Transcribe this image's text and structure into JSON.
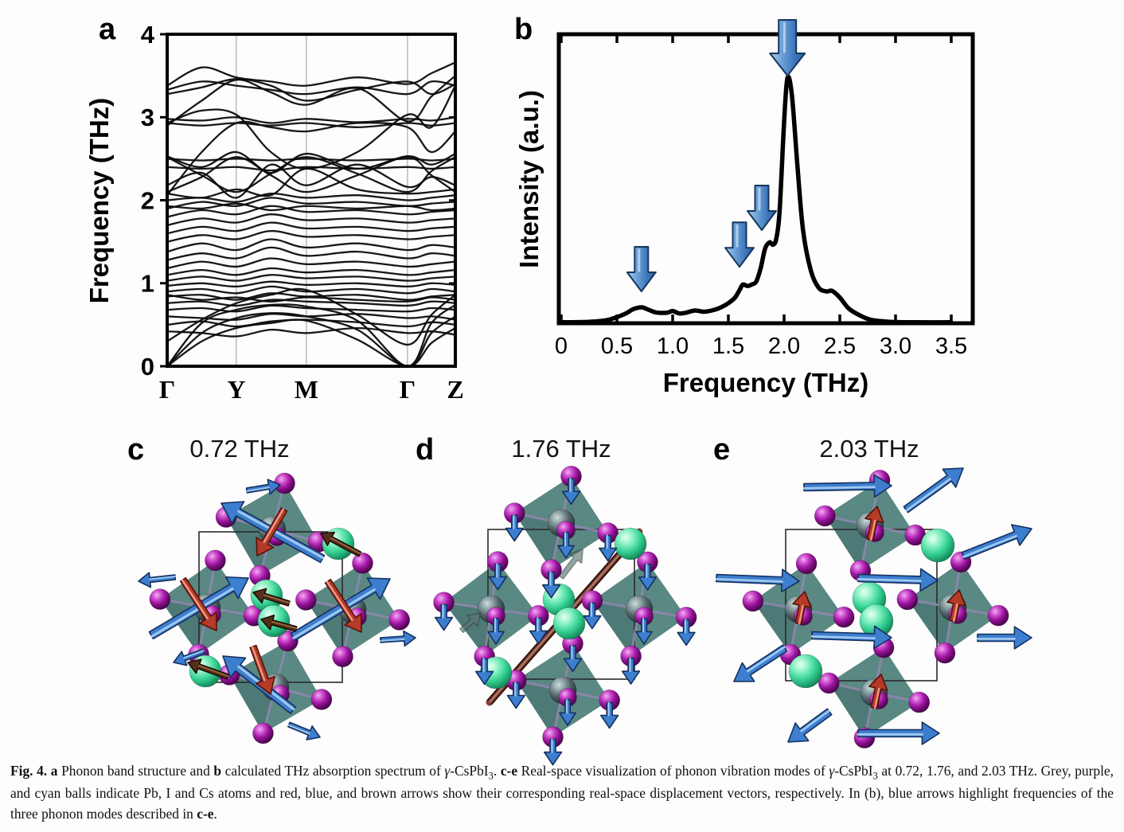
{
  "panels": {
    "a": "a",
    "b": "b"
  },
  "colors": {
    "band": "#0b0b0b",
    "frame": "#000000",
    "grid": "#9a9a9a",
    "octahedron": "#4e7f7a",
    "octahedron_facet": "#44706b",
    "cell_line": "#2a2a2a",
    "bond": "#8d87ad",
    "i_ball_purple": "#9a159c",
    "pb_ball_grey": "#4e6165",
    "cs_ball_cyan": "#35d093",
    "arrow_blue": "#3d7ecf",
    "arrow_red": "#b53a28",
    "arrow_brown": "#54301a",
    "spectrum_arrow_blue": "#4d85c8"
  },
  "chart_data": [
    {
      "id": "panel_a",
      "type": "line",
      "title": "Phonon band structure",
      "ylabel": "Frequency (THz)",
      "ylim": [
        0,
        4
      ],
      "yticks": [
        0,
        1,
        2,
        3,
        4
      ],
      "ytick_labels": [
        "0",
        "1",
        "2",
        "3",
        "4"
      ],
      "kpoint_labels": [
        "Γ",
        "Y",
        "M",
        "Γ",
        "Z"
      ],
      "kpoint_positions": [
        0,
        0.24,
        0.483,
        0.834,
        1.0
      ],
      "band_x": [
        0,
        0.12,
        0.24,
        0.36,
        0.483,
        0.66,
        0.834,
        0.917,
        1.0
      ],
      "bands": [
        [
          0.0,
          0.3,
          0.46,
          0.52,
          0.55,
          0.32,
          0.0,
          0.28,
          0.46
        ],
        [
          0.0,
          0.4,
          0.58,
          0.64,
          0.6,
          0.44,
          0.0,
          0.4,
          0.6
        ],
        [
          0.0,
          0.52,
          0.68,
          0.74,
          0.72,
          0.55,
          0.0,
          0.52,
          0.74
        ],
        [
          0.42,
          0.4,
          0.36,
          0.44,
          0.4,
          0.46,
          0.4,
          0.42,
          0.38
        ],
        [
          0.5,
          0.54,
          0.48,
          0.54,
          0.56,
          0.53,
          0.48,
          0.53,
          0.5
        ],
        [
          0.6,
          0.58,
          0.56,
          0.63,
          0.6,
          0.63,
          0.58,
          0.6,
          0.56
        ],
        [
          0.68,
          0.7,
          0.66,
          0.73,
          0.7,
          0.68,
          0.66,
          0.7,
          0.68
        ],
        [
          0.76,
          0.78,
          0.73,
          0.8,
          0.78,
          0.76,
          0.73,
          0.78,
          0.76
        ],
        [
          0.84,
          0.86,
          0.8,
          0.88,
          0.84,
          0.86,
          0.8,
          0.84,
          0.86
        ],
        [
          0.9,
          0.93,
          0.88,
          0.96,
          0.9,
          0.93,
          0.88,
          0.93,
          0.9
        ],
        [
          0.97,
          1.0,
          0.96,
          1.02,
          0.98,
          1.0,
          0.96,
          1.0,
          0.98
        ],
        [
          1.03,
          1.08,
          1.03,
          1.1,
          1.06,
          1.08,
          1.03,
          1.06,
          1.08
        ],
        [
          1.1,
          1.16,
          1.1,
          1.18,
          1.13,
          1.16,
          1.1,
          1.13,
          1.16
        ],
        [
          1.18,
          1.26,
          1.2,
          1.3,
          1.23,
          1.26,
          1.2,
          1.23,
          1.26
        ],
        [
          1.28,
          1.36,
          1.3,
          1.43,
          1.33,
          1.38,
          1.3,
          1.36,
          1.33
        ],
        [
          1.38,
          1.48,
          1.4,
          1.53,
          1.43,
          1.48,
          1.4,
          1.46,
          1.43
        ],
        [
          1.5,
          1.58,
          1.53,
          1.63,
          1.56,
          1.58,
          1.53,
          1.56,
          1.58
        ],
        [
          1.6,
          1.68,
          1.63,
          1.73,
          1.66,
          1.68,
          1.63,
          1.66,
          1.68
        ],
        [
          1.7,
          1.78,
          1.73,
          1.83,
          1.76,
          1.78,
          1.73,
          1.76,
          1.78
        ],
        [
          1.8,
          1.88,
          1.83,
          1.93,
          1.86,
          1.88,
          1.83,
          1.86,
          1.88
        ],
        [
          1.9,
          1.98,
          1.93,
          2.03,
          1.96,
          1.98,
          1.93,
          1.96,
          1.98
        ],
        [
          2.0,
          2.03,
          1.98,
          2.08,
          2.03,
          2.06,
          2.0,
          2.03,
          2.06
        ],
        [
          2.08,
          2.03,
          2.13,
          2.06,
          2.38,
          2.13,
          2.08,
          2.1,
          2.13
        ],
        [
          2.18,
          2.33,
          2.03,
          2.43,
          2.18,
          2.43,
          2.16,
          2.28,
          2.18
        ],
        [
          2.5,
          2.48,
          2.5,
          2.48,
          2.5,
          2.48,
          2.5,
          2.48,
          2.5
        ],
        [
          2.53,
          2.4,
          2.58,
          2.33,
          2.56,
          2.38,
          2.53,
          2.43,
          2.56
        ],
        [
          2.93,
          2.9,
          2.93,
          2.9,
          2.93,
          2.88,
          2.93,
          2.9,
          2.93
        ],
        [
          2.98,
          2.96,
          3.0,
          2.93,
          2.98,
          2.94,
          2.98,
          2.96,
          3.0
        ],
        [
          2.06,
          2.58,
          2.93,
          2.88,
          2.83,
          2.93,
          2.88,
          2.58,
          2.83
        ],
        [
          2.93,
          3.08,
          3.03,
          2.58,
          2.38,
          2.58,
          3.03,
          2.88,
          3.38
        ],
        [
          3.33,
          3.43,
          3.38,
          3.33,
          3.28,
          3.36,
          3.28,
          3.43,
          3.38
        ],
        [
          3.38,
          3.6,
          3.48,
          3.43,
          3.38,
          3.48,
          3.4,
          3.53,
          3.66
        ],
        [
          3.28,
          3.36,
          3.46,
          3.38,
          3.2,
          3.33,
          3.43,
          3.28,
          3.4
        ],
        [
          1.93,
          1.9,
          1.96,
          1.88,
          1.93,
          1.9,
          1.93,
          1.88,
          1.9
        ],
        [
          0.86,
          0.8,
          0.83,
          0.78,
          0.83,
          0.8,
          0.78,
          0.83,
          0.8
        ],
        [
          2.4,
          2.38,
          2.4,
          2.36,
          2.4,
          2.38,
          2.4,
          2.38,
          2.4
        ],
        [
          0.3,
          0.56,
          0.76,
          0.86,
          0.92,
          0.62,
          0.26,
          0.62,
          0.86
        ],
        [
          2.1,
          2.28,
          2.52,
          2.3,
          2.1,
          2.3,
          2.52,
          2.3,
          2.1
        ],
        [
          2.52,
          2.3,
          2.1,
          2.32,
          2.52,
          2.32,
          2.1,
          2.35,
          2.52
        ],
        [
          2.9,
          3.2,
          3.45,
          3.3,
          3.15,
          3.35,
          2.95,
          3.25,
          3.5
        ]
      ]
    },
    {
      "id": "panel_b",
      "type": "line",
      "title": "Calculated THz absorption spectrum",
      "xlabel": "Frequency (THz)",
      "ylabel": "Intensity (a.u.)",
      "xlim": [
        0,
        3.5
      ],
      "ylim": [
        0,
        1.05
      ],
      "xticks": [
        0,
        0.5,
        1.0,
        1.5,
        2.0,
        2.5,
        3.0,
        3.5
      ],
      "xtick_labels": [
        "0",
        "0.5",
        "1.0",
        "1.5",
        "2.0",
        "2.5",
        "3.0",
        "3.5"
      ],
      "x": [
        0,
        0.25,
        0.4,
        0.5,
        0.58,
        0.65,
        0.72,
        0.78,
        0.85,
        0.95,
        1.0,
        1.06,
        1.12,
        1.2,
        1.28,
        1.35,
        1.42,
        1.5,
        1.56,
        1.6,
        1.63,
        1.67,
        1.71,
        1.75,
        1.79,
        1.83,
        1.87,
        1.9,
        1.93,
        1.96,
        2.0,
        2.03,
        2.07,
        2.12,
        2.17,
        2.24,
        2.31,
        2.38,
        2.43,
        2.5,
        2.58,
        2.68,
        2.78,
        2.95,
        3.2,
        3.5
      ],
      "y": [
        0.004,
        0.006,
        0.012,
        0.025,
        0.04,
        0.058,
        0.065,
        0.056,
        0.044,
        0.043,
        0.05,
        0.04,
        0.043,
        0.052,
        0.047,
        0.052,
        0.062,
        0.082,
        0.105,
        0.135,
        0.158,
        0.152,
        0.158,
        0.17,
        0.225,
        0.305,
        0.33,
        0.32,
        0.345,
        0.46,
        0.82,
        1.0,
        0.93,
        0.64,
        0.38,
        0.215,
        0.145,
        0.13,
        0.132,
        0.105,
        0.06,
        0.032,
        0.014,
        0.006,
        0.004,
        0.004
      ],
      "arrow_marker_freqs_thz": [
        0.72,
        1.6,
        1.8,
        2.03
      ],
      "arrow_marker_tip_heights": [
        0.12,
        0.22,
        0.37,
        1.0
      ],
      "arrow_marker_sizes": [
        "small",
        "small",
        "small",
        "large"
      ]
    }
  ],
  "structures": {
    "c": {
      "label": "c",
      "title": "0.72 THz",
      "cell": [
        90,
        88,
        180,
        189
      ],
      "oct": [
        [
          182,
          85,
          60,
          15
        ],
        [
          100,
          183,
          60,
          10
        ],
        [
          283,
          186,
          60,
          12
        ],
        [
          186,
          283,
          60,
          15
        ]
      ],
      "cs": [
        [
          265,
          103,
          20
        ],
        [
          175,
          168,
          20
        ],
        [
          184,
          200,
          20
        ],
        [
          98,
          263,
          20
        ]
      ],
      "arrows": [
        [
          "blue",
          245,
          122,
          118,
          52,
          10
        ],
        [
          "blue",
          30,
          218,
          152,
          146,
          10
        ],
        [
          "blue",
          208,
          220,
          330,
          147,
          10
        ],
        [
          "blue",
          208,
          312,
          120,
          244,
          10
        ],
        [
          "red",
          197,
          60,
          163,
          118,
          8
        ],
        [
          "red",
          70,
          148,
          112,
          212,
          8
        ],
        [
          "red",
          252,
          150,
          294,
          214,
          8
        ],
        [
          "red",
          158,
          232,
          180,
          292,
          8
        ],
        [
          "blue",
          60,
          145,
          14,
          150,
          6
        ],
        [
          "blue",
          318,
          224,
          362,
          221,
          6
        ],
        [
          "blue",
          150,
          36,
          192,
          29,
          6
        ],
        [
          "blue",
          203,
          330,
          242,
          346,
          6
        ],
        [
          "blue",
          96,
          238,
          58,
          252,
          6
        ],
        [
          "brown",
          292,
          116,
          243,
          90,
          6
        ],
        [
          "brown",
          203,
          178,
          158,
          164,
          6
        ],
        [
          "brown",
          212,
          210,
          168,
          198,
          6
        ],
        [
          "brown",
          126,
          270,
          76,
          252,
          6
        ]
      ]
    },
    "d": {
      "label": "d",
      "title": "1.76 THz",
      "cell": [
        93,
        85,
        184,
        188
      ],
      "oct": [
        [
          185,
          77,
          60,
          12
        ],
        [
          97,
          185,
          60,
          8
        ],
        [
          283,
          185,
          60,
          10
        ],
        [
          187,
          287,
          60,
          12
        ]
      ],
      "cs": [
        [
          272,
          103,
          20
        ],
        [
          182,
          173,
          20
        ],
        [
          195,
          203,
          20
        ],
        [
          103,
          265,
          20
        ]
      ],
      "down_arrows": true,
      "arrows": [
        [
          "rod",
          95,
          302,
          283,
          88,
          9
        ],
        [
          "grey",
          185,
          145,
          212,
          110,
          6
        ],
        [
          "grey",
          60,
          212,
          84,
          190,
          6
        ]
      ]
    },
    "e": {
      "label": "e",
      "title": "2.03 THz",
      "cell": [
        107,
        85,
        190,
        190
      ],
      "oct": [
        [
          213,
          80,
          58,
          12
        ],
        [
          123,
          185,
          58,
          10
        ],
        [
          317,
          183,
          58,
          10
        ],
        [
          218,
          290,
          58,
          12
        ]
      ],
      "cs": [
        [
          298,
          105,
          21
        ],
        [
          212,
          172,
          21
        ],
        [
          221,
          200,
          21
        ],
        [
          132,
          263,
          21
        ]
      ],
      "arrows": [
        [
          "blue",
          130,
          32,
          240,
          30,
          9
        ],
        [
          "blue",
          258,
          60,
          330,
          8,
          9
        ],
        [
          "blue",
          20,
          146,
          124,
          150,
          9
        ],
        [
          "blue",
          198,
          146,
          298,
          149,
          9
        ],
        [
          "blue",
          330,
          118,
          416,
          84,
          9
        ],
        [
          "blue",
          140,
          218,
          240,
          221,
          9
        ],
        [
          "blue",
          348,
          221,
          416,
          221,
          9
        ],
        [
          "blue",
          106,
          234,
          42,
          276,
          9
        ],
        [
          "blue",
          162,
          314,
          110,
          352,
          9
        ],
        [
          "blue",
          198,
          341,
          300,
          341,
          9
        ],
        [
          "red",
          213,
          98,
          222,
          56,
          7.5
        ],
        [
          "red",
          123,
          203,
          131,
          163,
          7.5
        ],
        [
          "red",
          317,
          200,
          325,
          161,
          7.5
        ],
        [
          "red",
          218,
          309,
          227,
          267,
          7.5
        ]
      ]
    }
  },
  "caption": {
    "segments": [
      {
        "t": "Fig. 4.",
        "b": true
      },
      {
        "t": "  "
      },
      {
        "t": "a",
        "b": true
      },
      {
        "t": " Phonon band structure and "
      },
      {
        "t": "b",
        "b": true
      },
      {
        "t": " calculated THz absorption spectrum of "
      },
      {
        "t": "γ",
        "i": true
      },
      {
        "t": "-CsPbI"
      },
      {
        "t": "3",
        "s": true
      },
      {
        "t": ". "
      },
      {
        "t": "c-e",
        "b": true
      },
      {
        "t": " Real-space visualization of phonon vibration modes of "
      },
      {
        "t": "γ",
        "i": true
      },
      {
        "t": "-CsPbI"
      },
      {
        "t": "3",
        "s": true
      },
      {
        "t": " at 0.72, 1.76, and 2.03 THz. Grey, purple, and cyan balls indicate Pb, I and Cs atoms and red, blue, and brown arrows show their corresponding real-space displacement vectors, respectively. In (b), blue arrows highlight frequencies of the three phonon modes described in "
      },
      {
        "t": "c-e",
        "b": true
      },
      {
        "t": "."
      }
    ]
  }
}
